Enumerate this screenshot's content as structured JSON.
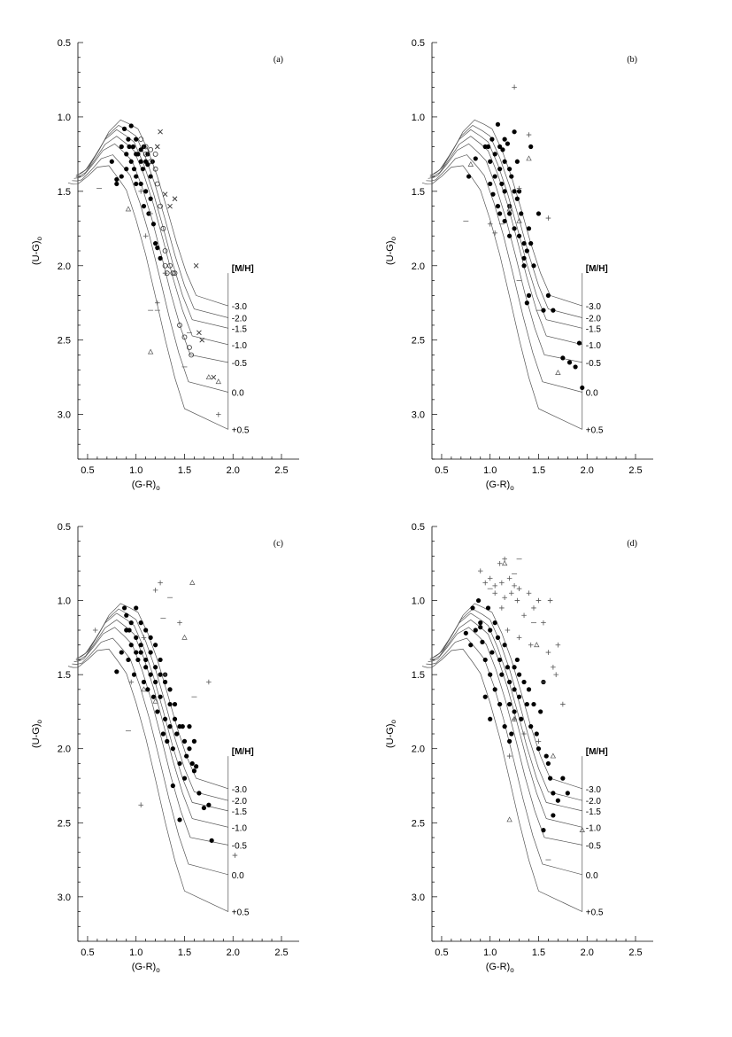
{
  "figure": {
    "x_tick_labels": [
      "0.5",
      "1.0",
      "1.5",
      "2.0",
      "2.5"
    ],
    "y_tick_labels": [
      "0.5",
      "1.0",
      "1.5",
      "2.0",
      "2.5",
      "3.0"
    ],
    "x_title": "(G-R)o",
    "y_title": "(U-G)o",
    "mh_title": "[M/H]",
    "mh_labels": [
      "-3.0",
      "-2.0",
      "-1.5",
      "-1.0",
      "-0.5",
      "0.0",
      "+0.5"
    ]
  },
  "chart_data": [
    {
      "type": "scatter",
      "panel": "(a)",
      "xlabel": "(G-R)o",
      "ylabel": "(U-G)o",
      "xlim": [
        0.4,
        2.5
      ],
      "ylim": [
        3.3,
        0.5
      ],
      "y_axis_inverted": true,
      "grid": false,
      "isometallicity_curves": [
        "-3.0",
        "-2.0",
        "-1.5",
        "-1.0",
        "-0.5",
        "0.0",
        "+0.5"
      ],
      "series": [
        {
          "marker": "filled-circle",
          "x": [
            0.75,
            0.8,
            0.85,
            0.88,
            0.9,
            0.92,
            0.95,
            0.95,
            0.97,
            1.0,
            1.0,
            1.02,
            1.05,
            1.05,
            1.07,
            1.08,
            1.1,
            1.1,
            1.12,
            1.15,
            1.15,
            0.98,
            0.9,
            0.85,
            1.0,
            1.08,
            1.13,
            1.18,
            1.2,
            1.22,
            1.25,
            1.0,
            1.05,
            0.93,
            0.8,
            1.12,
            1.17
          ],
          "y": [
            1.3,
            1.42,
            1.2,
            1.08,
            1.25,
            1.15,
            1.3,
            1.06,
            1.2,
            1.15,
            1.4,
            1.25,
            1.3,
            1.45,
            1.35,
            1.2,
            1.3,
            1.5,
            1.32,
            1.4,
            1.55,
            1.35,
            1.35,
            1.4,
            1.45,
            1.6,
            1.65,
            1.72,
            1.85,
            1.88,
            1.95,
            1.25,
            1.22,
            1.2,
            1.45,
            1.25,
            1.3
          ]
        },
        {
          "marker": "open-circle",
          "x": [
            1.05,
            1.1,
            1.15,
            1.15,
            1.2,
            1.22,
            1.25,
            1.28,
            1.3,
            1.3,
            1.32,
            1.35,
            1.38,
            1.4,
            1.5,
            1.55,
            1.57,
            1.45,
            1.2,
            1.1
          ],
          "y": [
            1.15,
            1.2,
            1.3,
            1.22,
            1.35,
            1.45,
            1.6,
            1.75,
            1.9,
            2.0,
            2.05,
            2.0,
            2.05,
            2.05,
            2.48,
            2.55,
            2.6,
            2.4,
            1.25,
            1.25
          ]
        },
        {
          "marker": "x-cross",
          "x": [
            1.25,
            1.22,
            1.3,
            1.35,
            1.4,
            1.62,
            1.65,
            1.68,
            1.8
          ],
          "y": [
            1.1,
            1.2,
            1.52,
            1.6,
            1.55,
            2.0,
            2.45,
            2.5,
            2.75
          ]
        },
        {
          "marker": "plus",
          "x": [
            1.1,
            1.15,
            1.05,
            1.3,
            1.22,
            1.85
          ],
          "y": [
            1.8,
            1.65,
            1.5,
            2.05,
            2.25,
            3.0
          ]
        },
        {
          "marker": "triangle",
          "x": [
            0.92,
            1.15,
            1.75,
            1.85
          ],
          "y": [
            1.62,
            2.58,
            2.75,
            2.78
          ]
        },
        {
          "marker": "dash",
          "x": [
            0.62,
            1.15,
            1.22,
            1.55,
            1.5
          ],
          "y": [
            1.48,
            2.3,
            2.3,
            2.45,
            2.68
          ]
        }
      ]
    },
    {
      "type": "scatter",
      "panel": "(b)",
      "xlabel": "(G-R)o",
      "ylabel": "(U-G)o",
      "xlim": [
        0.4,
        2.5
      ],
      "ylim": [
        3.3,
        0.5
      ],
      "y_axis_inverted": true,
      "grid": false,
      "isometallicity_curves": [
        "-3.0",
        "-2.0",
        "-1.5",
        "-1.0",
        "-0.5",
        "0.0",
        "+0.5"
      ],
      "series": [
        {
          "marker": "filled-circle",
          "x": [
            0.78,
            0.85,
            0.95,
            1.0,
            1.02,
            1.05,
            1.05,
            1.08,
            1.1,
            1.1,
            1.12,
            1.15,
            1.15,
            1.18,
            1.2,
            1.2,
            1.22,
            1.25,
            1.25,
            1.28,
            1.3,
            1.3,
            1.32,
            1.35,
            1.35,
            1.38,
            1.4,
            1.42,
            1.45,
            1.5,
            1.55,
            1.6,
            1.65,
            1.75,
            1.82,
            1.88,
            1.92,
            1.95,
            1.1,
            1.15,
            1.2,
            1.25,
            1.35,
            1.4,
            1.42,
            1.15,
            1.2,
            1.08,
            1.0,
            0.98,
            1.03,
            1.13,
            1.28,
            1.38
          ],
          "y": [
            1.4,
            1.28,
            1.2,
            1.3,
            1.15,
            1.25,
            1.4,
            1.05,
            1.2,
            1.35,
            1.45,
            1.3,
            1.5,
            1.18,
            1.35,
            1.6,
            1.4,
            1.5,
            1.75,
            1.3,
            1.5,
            1.8,
            1.65,
            1.85,
            2.0,
            1.9,
            2.2,
            1.85,
            2.0,
            1.65,
            2.3,
            2.2,
            2.3,
            2.62,
            2.65,
            2.68,
            2.52,
            2.82,
            1.65,
            1.7,
            1.8,
            1.1,
            1.95,
            1.75,
            1.2,
            1.15,
            1.65,
            1.6,
            1.45,
            1.2,
            1.52,
            1.22,
            1.55,
            2.25
          ]
        },
        {
          "marker": "plus",
          "x": [
            1.25,
            1.05,
            1.0,
            1.2,
            1.4,
            1.3,
            1.6
          ],
          "y": [
            0.8,
            1.78,
            1.72,
            1.6,
            1.12,
            1.48,
            1.68
          ]
        },
        {
          "marker": "triangle",
          "x": [
            0.8,
            1.2,
            1.3,
            1.4,
            1.7
          ],
          "y": [
            1.32,
            1.62,
            1.7,
            1.28,
            2.72
          ]
        },
        {
          "marker": "dash",
          "x": [
            0.75,
            1.12,
            1.3,
            1.5
          ],
          "y": [
            1.7,
            1.72,
            2.1,
            2.3
          ]
        }
      ]
    },
    {
      "type": "scatter",
      "panel": "(c)",
      "xlabel": "(G-R)o",
      "ylabel": "(U-G)o",
      "xlim": [
        0.4,
        2.5
      ],
      "ylim": [
        3.3,
        0.5
      ],
      "y_axis_inverted": true,
      "grid": false,
      "isometallicity_curves": [
        "-3.0",
        "-2.0",
        "-1.5",
        "-1.0",
        "-0.5",
        "0.0",
        "+0.5"
      ],
      "series": [
        {
          "marker": "filled-circle",
          "x": [
            0.8,
            0.85,
            0.88,
            0.9,
            0.92,
            0.95,
            0.95,
            0.98,
            1.0,
            1.0,
            1.02,
            1.05,
            1.05,
            1.08,
            1.1,
            1.1,
            1.12,
            1.15,
            1.15,
            1.18,
            1.2,
            1.2,
            1.22,
            1.25,
            1.25,
            1.28,
            1.3,
            1.3,
            1.32,
            1.35,
            1.35,
            1.38,
            1.4,
            1.42,
            1.45,
            1.48,
            1.5,
            1.52,
            1.55,
            1.58,
            1.6,
            1.62,
            1.65,
            1.7,
            1.75,
            1.78,
            1.45,
            1.38,
            1.5,
            0.9,
            0.93,
            1.0,
            1.05,
            1.1,
            1.15,
            1.2,
            1.25,
            1.3,
            1.35,
            1.4,
            1.45,
            1.55,
            1.6
          ],
          "y": [
            1.48,
            1.35,
            1.05,
            1.2,
            1.4,
            1.15,
            1.3,
            1.5,
            1.05,
            1.25,
            1.4,
            1.15,
            1.35,
            1.55,
            1.2,
            1.45,
            1.6,
            1.25,
            1.5,
            1.65,
            1.3,
            1.55,
            1.75,
            1.4,
            1.65,
            1.9,
            1.5,
            1.8,
            1.95,
            1.6,
            1.85,
            2.0,
            1.7,
            1.9,
            2.1,
            1.85,
            1.95,
            2.05,
            2.0,
            2.1,
            2.15,
            2.12,
            2.3,
            2.4,
            2.38,
            2.62,
            2.48,
            2.25,
            2.2,
            1.1,
            1.2,
            1.35,
            1.3,
            1.4,
            1.35,
            1.45,
            1.5,
            1.55,
            1.7,
            1.8,
            1.85,
            1.85,
            1.95
          ]
        },
        {
          "marker": "plus",
          "x": [
            0.58,
            1.2,
            1.25,
            1.45,
            1.75,
            1.05,
            1.08,
            0.95,
            1.3,
            2.02
          ],
          "y": [
            1.2,
            0.93,
            0.88,
            1.15,
            1.55,
            2.38,
            1.25,
            1.55,
            1.5,
            2.72
          ]
        },
        {
          "marker": "triangle",
          "x": [
            1.58,
            1.08,
            1.2,
            1.5
          ],
          "y": [
            0.88,
            1.6,
            1.68,
            1.25
          ]
        },
        {
          "marker": "dash",
          "x": [
            1.35,
            0.92,
            1.28,
            1.6
          ],
          "y": [
            0.98,
            1.88,
            1.12,
            1.65
          ]
        }
      ]
    },
    {
      "type": "scatter",
      "panel": "(d)",
      "xlabel": "(G-R)o",
      "ylabel": "(U-G)o",
      "xlim": [
        0.4,
        2.5
      ],
      "ylim": [
        3.3,
        0.5
      ],
      "y_axis_inverted": true,
      "grid": false,
      "isometallicity_curves": [
        "-3.0",
        "-2.0",
        "-1.5",
        "-1.0",
        "-0.5",
        "0.0",
        "+0.5"
      ],
      "series": [
        {
          "marker": "filled-circle",
          "x": [
            0.75,
            0.8,
            0.82,
            0.85,
            0.88,
            0.9,
            0.92,
            0.95,
            0.98,
            1.0,
            1.0,
            1.02,
            1.05,
            1.05,
            1.08,
            1.1,
            1.1,
            1.12,
            1.15,
            1.15,
            1.18,
            1.2,
            1.2,
            1.22,
            1.25,
            1.25,
            1.28,
            1.3,
            1.3,
            1.32,
            1.35,
            1.38,
            1.4,
            1.42,
            1.45,
            1.48,
            1.5,
            1.52,
            1.55,
            1.58,
            1.6,
            1.62,
            1.65,
            1.7,
            1.75,
            1.8,
            1.55,
            1.65,
            1.2,
            1.25,
            1.0,
            0.95,
            0.9
          ],
          "y": [
            1.22,
            1.3,
            1.05,
            1.2,
            1.0,
            1.15,
            1.28,
            1.4,
            1.05,
            1.2,
            1.5,
            1.35,
            1.15,
            1.6,
            1.25,
            1.4,
            1.7,
            1.5,
            1.3,
            1.85,
            1.45,
            1.55,
            1.7,
            1.9,
            1.6,
            1.75,
            1.4,
            1.5,
            1.65,
            1.8,
            1.55,
            1.7,
            1.6,
            1.85,
            1.7,
            1.9,
            2.0,
            1.75,
            1.55,
            2.05,
            2.1,
            2.2,
            2.3,
            2.35,
            2.2,
            2.3,
            2.55,
            2.45,
            1.95,
            1.45,
            1.8,
            1.65,
            1.18
          ]
        },
        {
          "marker": "plus",
          "x": [
            0.9,
            0.95,
            1.0,
            1.05,
            1.1,
            1.12,
            1.15,
            1.2,
            1.22,
            1.25,
            1.28,
            1.3,
            1.35,
            1.4,
            1.45,
            1.5,
            1.55,
            1.6,
            1.65,
            1.7,
            1.75,
            1.12,
            1.18,
            1.3,
            1.42,
            1.05,
            1.15,
            1.25,
            1.35,
            1.5,
            1.2,
            1.62,
            1.68
          ],
          "y": [
            0.8,
            0.88,
            0.85,
            0.9,
            0.75,
            0.88,
            0.72,
            0.85,
            0.95,
            0.9,
            1.0,
            0.92,
            1.1,
            0.95,
            1.05,
            1.0,
            1.15,
            1.35,
            1.45,
            1.3,
            1.7,
            1.05,
            1.2,
            1.25,
            1.3,
            0.95,
            0.98,
            1.8,
            1.9,
            1.95,
            2.05,
            1.0,
            1.5
          ]
        },
        {
          "marker": "triangle",
          "x": [
            1.15,
            1.2,
            1.25,
            1.65,
            1.95,
            1.48
          ],
          "y": [
            0.75,
            2.48,
            1.8,
            2.05,
            2.55,
            1.3
          ]
        },
        {
          "marker": "dash",
          "x": [
            1.0,
            1.25,
            1.45,
            1.55,
            1.3,
            1.6
          ],
          "y": [
            0.92,
            0.82,
            1.15,
            1.55,
            0.72,
            2.75
          ]
        }
      ]
    }
  ]
}
